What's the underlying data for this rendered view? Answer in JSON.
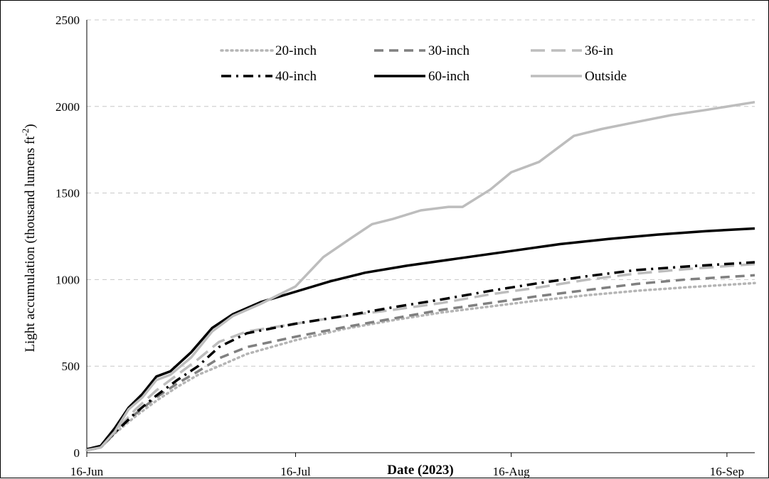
{
  "chart_data": {
    "type": "line",
    "xlabel": "Date (2023)",
    "ylabel": "Light accumulation (thousand lumens ft",
    "ylabel_sup": "-2",
    "ylabel_close": ")",
    "ylim": [
      0,
      2500
    ],
    "yticks": [
      0,
      500,
      1000,
      1500,
      2000,
      2500
    ],
    "xlim": [
      "2023-06-16",
      "2023-09-20"
    ],
    "xticks": [
      {
        "date": "2023-06-16",
        "label": "16-Jun"
      },
      {
        "date": "2023-07-16",
        "label": "16-Jul"
      },
      {
        "date": "2023-08-16",
        "label": "16-Aug"
      },
      {
        "date": "2023-09-16",
        "label": "16-Sep"
      }
    ],
    "grid": "horizontal dashed",
    "legend_position": "top",
    "series": [
      {
        "name": "20-inch",
        "color": "#b5b5b5",
        "style": "dotted",
        "x": [
          "2023-06-16",
          "2023-06-18",
          "2023-06-20",
          "2023-06-23",
          "2023-06-26",
          "2023-06-29",
          "2023-07-02",
          "2023-07-05",
          "2023-07-09",
          "2023-07-16",
          "2023-07-23",
          "2023-07-30",
          "2023-08-06",
          "2023-08-13",
          "2023-08-20",
          "2023-08-27",
          "2023-09-03",
          "2023-09-10",
          "2023-09-20"
        ],
        "values": [
          15,
          30,
          110,
          210,
          300,
          380,
          450,
          500,
          570,
          650,
          715,
          765,
          810,
          845,
          880,
          910,
          935,
          955,
          980
        ]
      },
      {
        "name": "30-inch",
        "color": "#808080",
        "style": "dashed",
        "x": [
          "2023-06-16",
          "2023-06-18",
          "2023-06-20",
          "2023-06-23",
          "2023-06-26",
          "2023-06-29",
          "2023-07-02",
          "2023-07-05",
          "2023-07-09",
          "2023-07-16",
          "2023-07-23",
          "2023-07-30",
          "2023-08-06",
          "2023-08-13",
          "2023-08-20",
          "2023-08-27",
          "2023-09-03",
          "2023-09-10",
          "2023-09-20"
        ],
        "values": [
          15,
          30,
          115,
          225,
          320,
          400,
          470,
          545,
          610,
          670,
          725,
          775,
          825,
          865,
          905,
          940,
          975,
          1000,
          1025
        ]
      },
      {
        "name": "36-in",
        "color": "#bdbdbd",
        "style": "longdash",
        "x": [
          "2023-06-16",
          "2023-06-18",
          "2023-06-20",
          "2023-06-23",
          "2023-06-26",
          "2023-06-29",
          "2023-07-02",
          "2023-07-05",
          "2023-07-09",
          "2023-07-16",
          "2023-07-23",
          "2023-07-30",
          "2023-08-06",
          "2023-08-13",
          "2023-08-20",
          "2023-08-27",
          "2023-09-03",
          "2023-09-10",
          "2023-09-20"
        ],
        "values": [
          15,
          30,
          120,
          250,
          360,
          450,
          540,
          640,
          700,
          745,
          790,
          825,
          865,
          915,
          955,
          1000,
          1035,
          1060,
          1090
        ]
      },
      {
        "name": "40-inch",
        "color": "#000000",
        "style": "dashdot",
        "x": [
          "2023-06-16",
          "2023-06-18",
          "2023-06-20",
          "2023-06-23",
          "2023-06-26",
          "2023-06-29",
          "2023-07-02",
          "2023-07-05",
          "2023-07-09",
          "2023-07-16",
          "2023-07-23",
          "2023-07-30",
          "2023-08-06",
          "2023-08-13",
          "2023-08-20",
          "2023-08-27",
          "2023-09-03",
          "2023-09-10",
          "2023-09-20"
        ],
        "values": [
          15,
          30,
          115,
          230,
          330,
          420,
          500,
          610,
          690,
          745,
          790,
          840,
          885,
          935,
          980,
          1020,
          1055,
          1075,
          1100
        ]
      },
      {
        "name": "60-inch",
        "color": "#000000",
        "style": "solid",
        "x": [
          "2023-06-16",
          "2023-06-18",
          "2023-06-20",
          "2023-06-22",
          "2023-06-24",
          "2023-06-26",
          "2023-06-28",
          "2023-07-01",
          "2023-07-04",
          "2023-07-07",
          "2023-07-11",
          "2023-07-16",
          "2023-07-21",
          "2023-07-26",
          "2023-08-01",
          "2023-08-08",
          "2023-08-16",
          "2023-08-23",
          "2023-08-30",
          "2023-09-06",
          "2023-09-13",
          "2023-09-20"
        ],
        "values": [
          20,
          40,
          140,
          260,
          340,
          440,
          470,
          580,
          720,
          800,
          870,
          930,
          990,
          1040,
          1080,
          1120,
          1165,
          1205,
          1235,
          1260,
          1280,
          1295
        ]
      },
      {
        "name": "Outside",
        "color": "#bdbdbd",
        "style": "solid",
        "x": [
          "2023-06-16",
          "2023-06-18",
          "2023-06-20",
          "2023-06-22",
          "2023-06-24",
          "2023-06-26",
          "2023-06-28",
          "2023-07-01",
          "2023-07-04",
          "2023-07-07",
          "2023-07-11",
          "2023-07-16",
          "2023-07-20",
          "2023-07-24",
          "2023-07-27",
          "2023-07-30",
          "2023-08-03",
          "2023-08-07",
          "2023-08-09",
          "2023-08-13",
          "2023-08-16",
          "2023-08-20",
          "2023-08-25",
          "2023-08-29",
          "2023-09-03",
          "2023-09-08",
          "2023-09-13",
          "2023-09-20"
        ],
        "values": [
          15,
          30,
          120,
          250,
          320,
          420,
          450,
          550,
          700,
          790,
          860,
          960,
          1130,
          1240,
          1320,
          1350,
          1400,
          1420,
          1420,
          1520,
          1620,
          1680,
          1830,
          1870,
          1910,
          1950,
          1980,
          2025
        ]
      }
    ]
  }
}
